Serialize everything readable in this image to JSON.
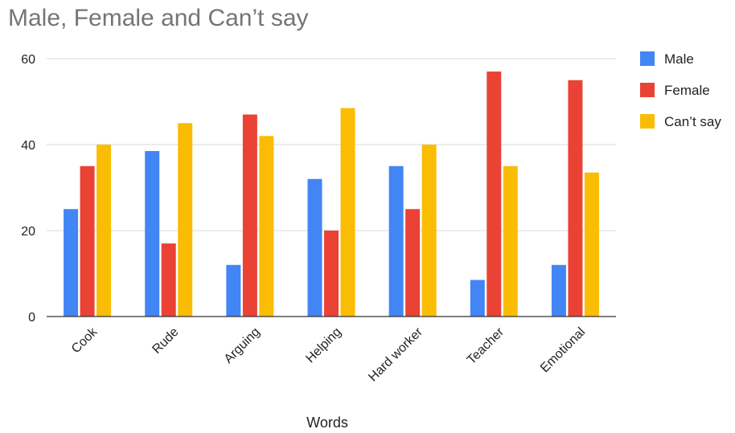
{
  "chart_data": {
    "type": "bar",
    "title": "Male, Female and Can’t say",
    "xlabel": "Words",
    "ylabel": "",
    "categories": [
      "Cook",
      "Rude",
      "Arguing",
      "Helping",
      "Hard worker",
      "Teacher",
      "Emotional"
    ],
    "series": [
      {
        "name": "Male",
        "color": "#4285f4",
        "values": [
          25,
          38.5,
          12,
          32,
          35,
          8.5,
          12
        ]
      },
      {
        "name": "Female",
        "color": "#ea4335",
        "values": [
          35,
          17,
          47,
          20,
          25,
          57,
          55
        ]
      },
      {
        "name": "Can’t say",
        "color": "#fbbc04",
        "values": [
          40,
          45,
          42,
          48.5,
          40,
          35,
          33.5
        ]
      }
    ],
    "ylim": [
      0,
      60
    ],
    "yticks": [
      0,
      20,
      40,
      60
    ],
    "grid": true,
    "legend": "right"
  }
}
